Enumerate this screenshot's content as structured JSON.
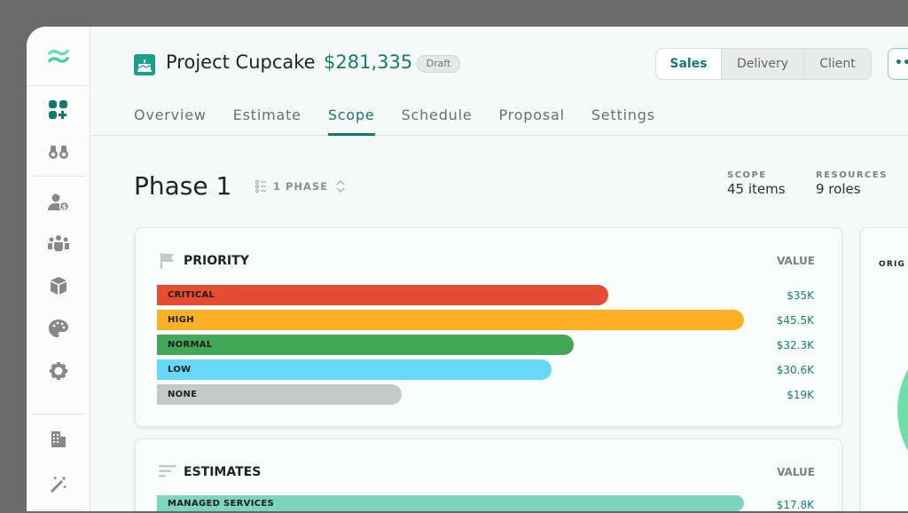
{
  "sidebar": {
    "items": [
      {
        "icon": "dashboard-add-icon",
        "active": true
      },
      {
        "icon": "binoculars-icon"
      },
      {
        "icon": "user-dollar-icon"
      },
      {
        "icon": "team-icon"
      },
      {
        "icon": "cube-icon"
      },
      {
        "icon": "palette-icon"
      },
      {
        "icon": "gear-icon"
      },
      {
        "icon": "building-icon"
      },
      {
        "icon": "magic-wand-icon"
      }
    ]
  },
  "header": {
    "title": "Project Cupcake",
    "amount": "$281,335",
    "status": "Draft",
    "views": [
      "Sales",
      "Delivery",
      "Client"
    ],
    "active_view": "Sales",
    "more": "••"
  },
  "tabs": [
    "Overview",
    "Estimate",
    "Scope",
    "Schedule",
    "Proposal",
    "Settings"
  ],
  "active_tab": "Scope",
  "phase": {
    "title": "Phase 1",
    "selector": "1 PHASE"
  },
  "stats": [
    {
      "label": "SCOPE",
      "value": "45 items"
    },
    {
      "label": "RESOURCES",
      "value": "9 roles"
    }
  ],
  "priority": {
    "title": "PRIORITY",
    "value_header": "VALUE",
    "max": 45.5,
    "rows": [
      {
        "label": "CRITICAL",
        "value": "$35K",
        "amount": 35,
        "color": "#e44d31"
      },
      {
        "label": "HIGH",
        "value": "$45.5K",
        "amount": 45.5,
        "color": "#ffb126"
      },
      {
        "label": "NORMAL",
        "value": "$32.3K",
        "amount": 32.3,
        "color": "#43a658"
      },
      {
        "label": "LOW",
        "value": "$30.6K",
        "amount": 30.6,
        "color": "#66d9f9"
      },
      {
        "label": "NONE",
        "value": "$19K",
        "amount": 19,
        "color": "#c4c9c7"
      }
    ]
  },
  "estimates": {
    "title": "ESTIMATES",
    "value_header": "VALUE",
    "rows": [
      {
        "label": "MANAGED SERVICES",
        "value": "$17.8K",
        "color": "#7dd5bf"
      }
    ]
  },
  "side_card": {
    "title": "ORIG",
    "chart_color": "#6fdfa9"
  }
}
